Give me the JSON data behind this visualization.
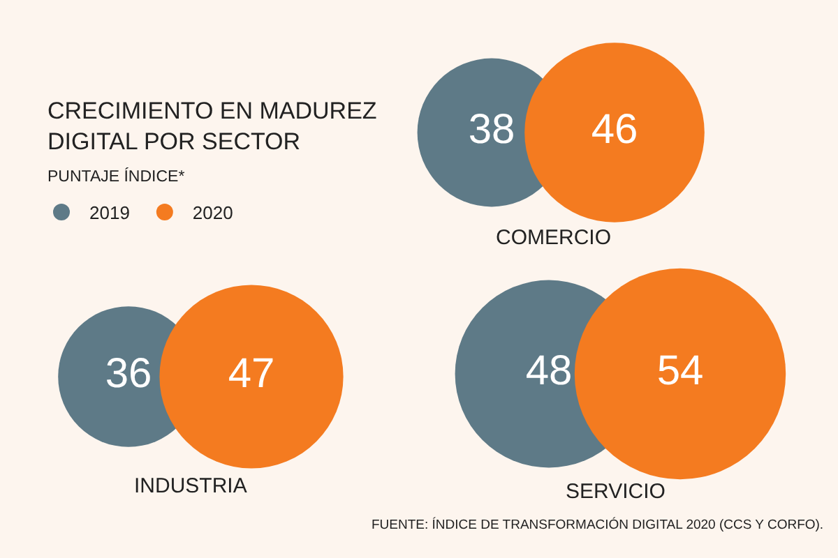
{
  "chart_data": {
    "type": "other",
    "title": "CRECIMIENTO EN MADUREZ\nDIGITAL POR SECTOR",
    "subtitle": "PUNTAJE ÍNDICE*",
    "categories": [
      "COMERCIO",
      "INDUSTRIA",
      "SERVICIO"
    ],
    "series": [
      {
        "name": "2019",
        "color": "#5e7a87",
        "values": [
          38,
          36,
          48
        ]
      },
      {
        "name": "2020",
        "color": "#f47b20",
        "values": [
          46,
          47,
          54
        ]
      }
    ],
    "data_labels": true,
    "legend": "top left",
    "annotations": [
      "FUENTE: ÍNDICE DE TRANSFORMACIÓN DIGITAL 2020 (CCS Y CORFO)."
    ]
  }
}
